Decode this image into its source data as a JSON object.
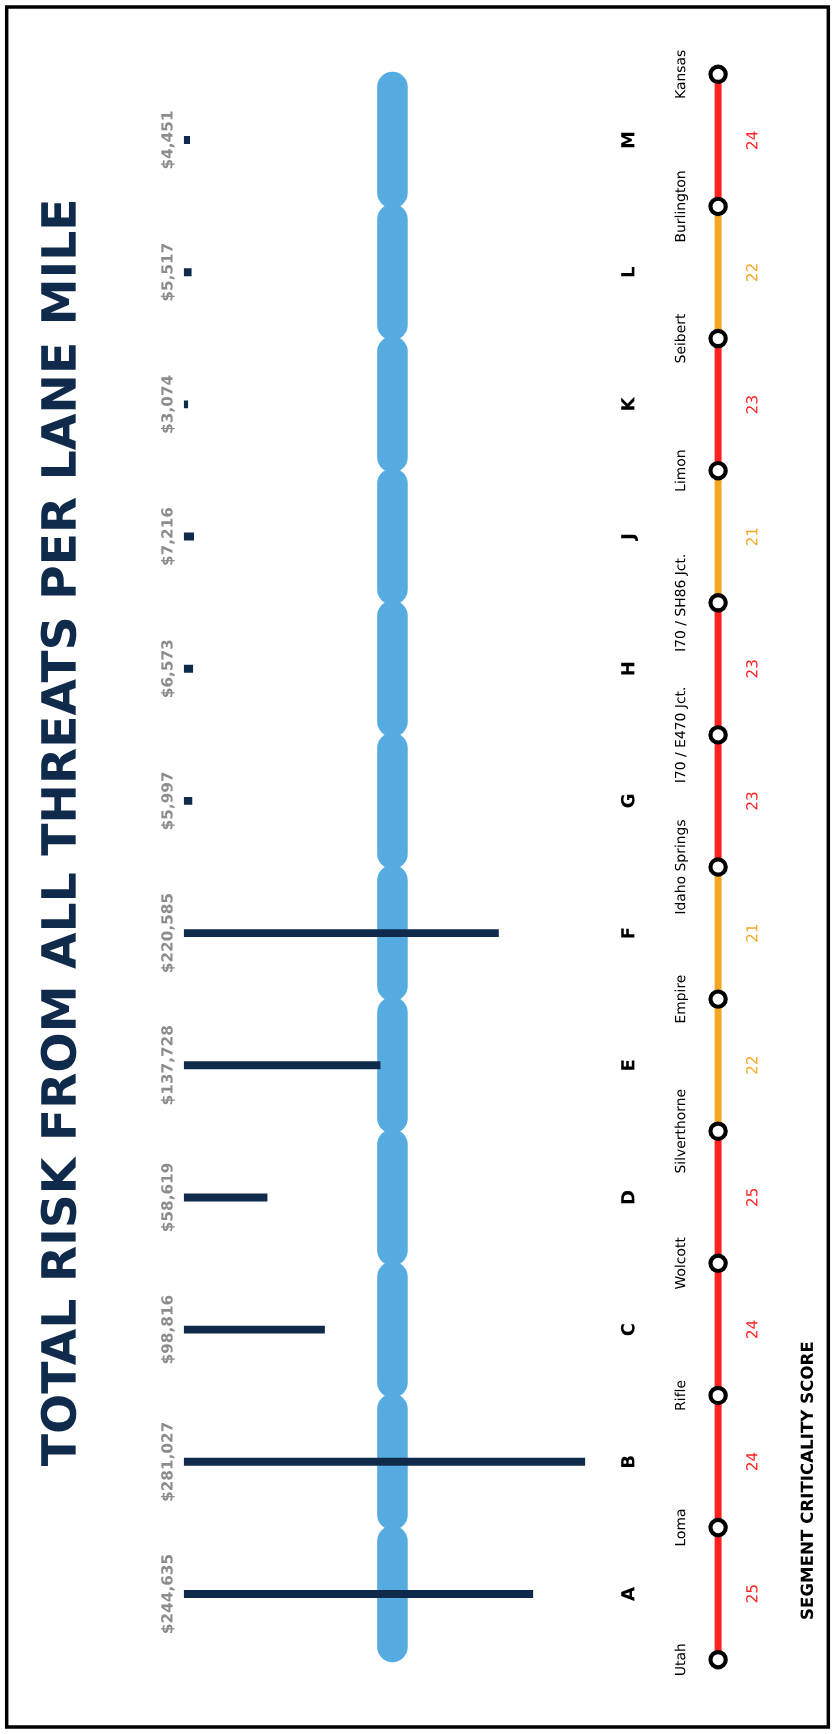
{
  "chart_data": [
    {
      "type": "bar",
      "orientation": "horizontal",
      "title": "TOTAL RISK FROM ALL THREATS PER LANE MILE",
      "color": "#0f2a4a",
      "categories": [
        "M",
        "L",
        "K",
        "J",
        "H",
        "G",
        "F",
        "E",
        "D",
        "C",
        "B",
        "A"
      ],
      "values": [
        4451,
        5517,
        3074,
        7216,
        6573,
        5997,
        220585,
        137728,
        58619,
        98816,
        281027,
        244635
      ],
      "value_labels": [
        "$4,451",
        "$5,517",
        "$3,074",
        "$7,216",
        "$6,573",
        "$5,997",
        "$220,585",
        "$137,728",
        "$58,619",
        "$98,816",
        "$281,027",
        "$244,635"
      ]
    },
    {
      "type": "other",
      "title": "SEGMENT CRITICALITY SCORE",
      "colors": [
        "#ff2020",
        "#ff2020",
        "#ff2020",
        "#ff2020",
        "#f5a623",
        "#f5a623",
        "#ff2020",
        "#ff2020",
        "#f5a623",
        "#ff2020",
        "#f5a623",
        "#ff2020"
      ],
      "annotations": [
        "Utah",
        "Loma",
        "Rifle",
        "Wolcott",
        "Silverthorne",
        "Empire",
        "Idaho Springs",
        "I70 / E470 Jct.",
        "I70 / SH86 Jct.",
        "Limon",
        "Seibert",
        "Burlington",
        "Kansas",
        "25",
        "24",
        "24",
        "25",
        "22",
        "21",
        "23",
        "23",
        "21",
        "23",
        "22",
        "24"
      ]
    }
  ]
}
